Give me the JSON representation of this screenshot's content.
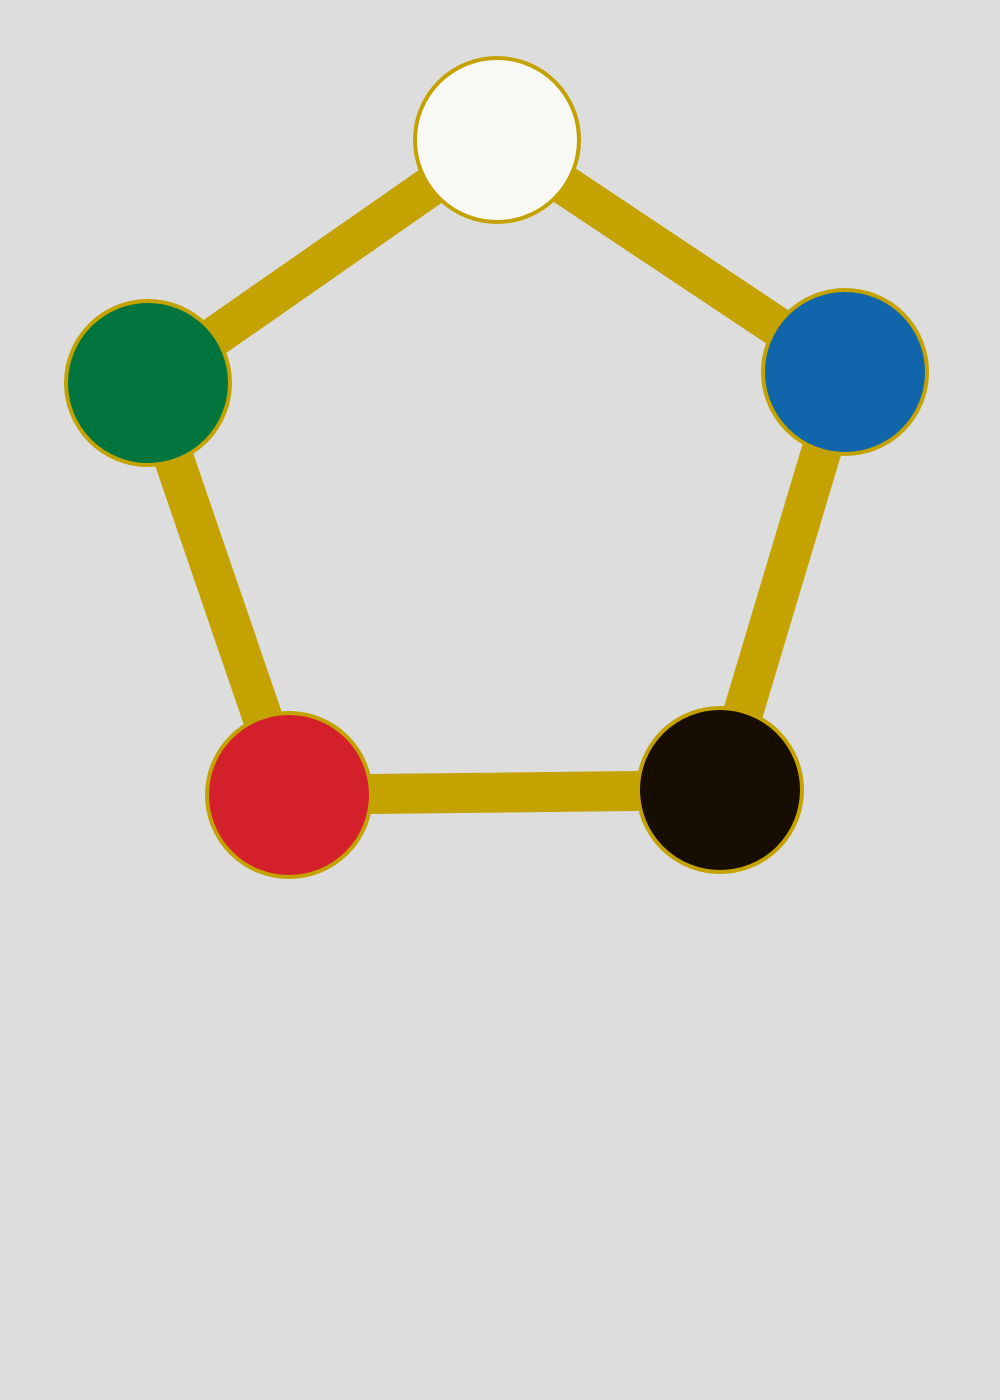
{
  "colors": {
    "background": "#dddddd",
    "edge": "#c4a300",
    "node_outline": "#c4a300"
  },
  "nodes": [
    {
      "id": "top",
      "color_name": "white",
      "fill": "#f8f9f4"
    },
    {
      "id": "right",
      "color_name": "blue",
      "fill": "#1065ab"
    },
    {
      "id": "bottom-right",
      "color_name": "black",
      "fill": "#170d00"
    },
    {
      "id": "bottom-left",
      "color_name": "red",
      "fill": "#d3202a"
    },
    {
      "id": "left",
      "color_name": "green",
      "fill": "#02753f"
    }
  ],
  "edges": [
    [
      "top",
      "right"
    ],
    [
      "right",
      "bottom-right"
    ],
    [
      "bottom-right",
      "bottom-left"
    ],
    [
      "bottom-left",
      "left"
    ],
    [
      "left",
      "top"
    ]
  ]
}
